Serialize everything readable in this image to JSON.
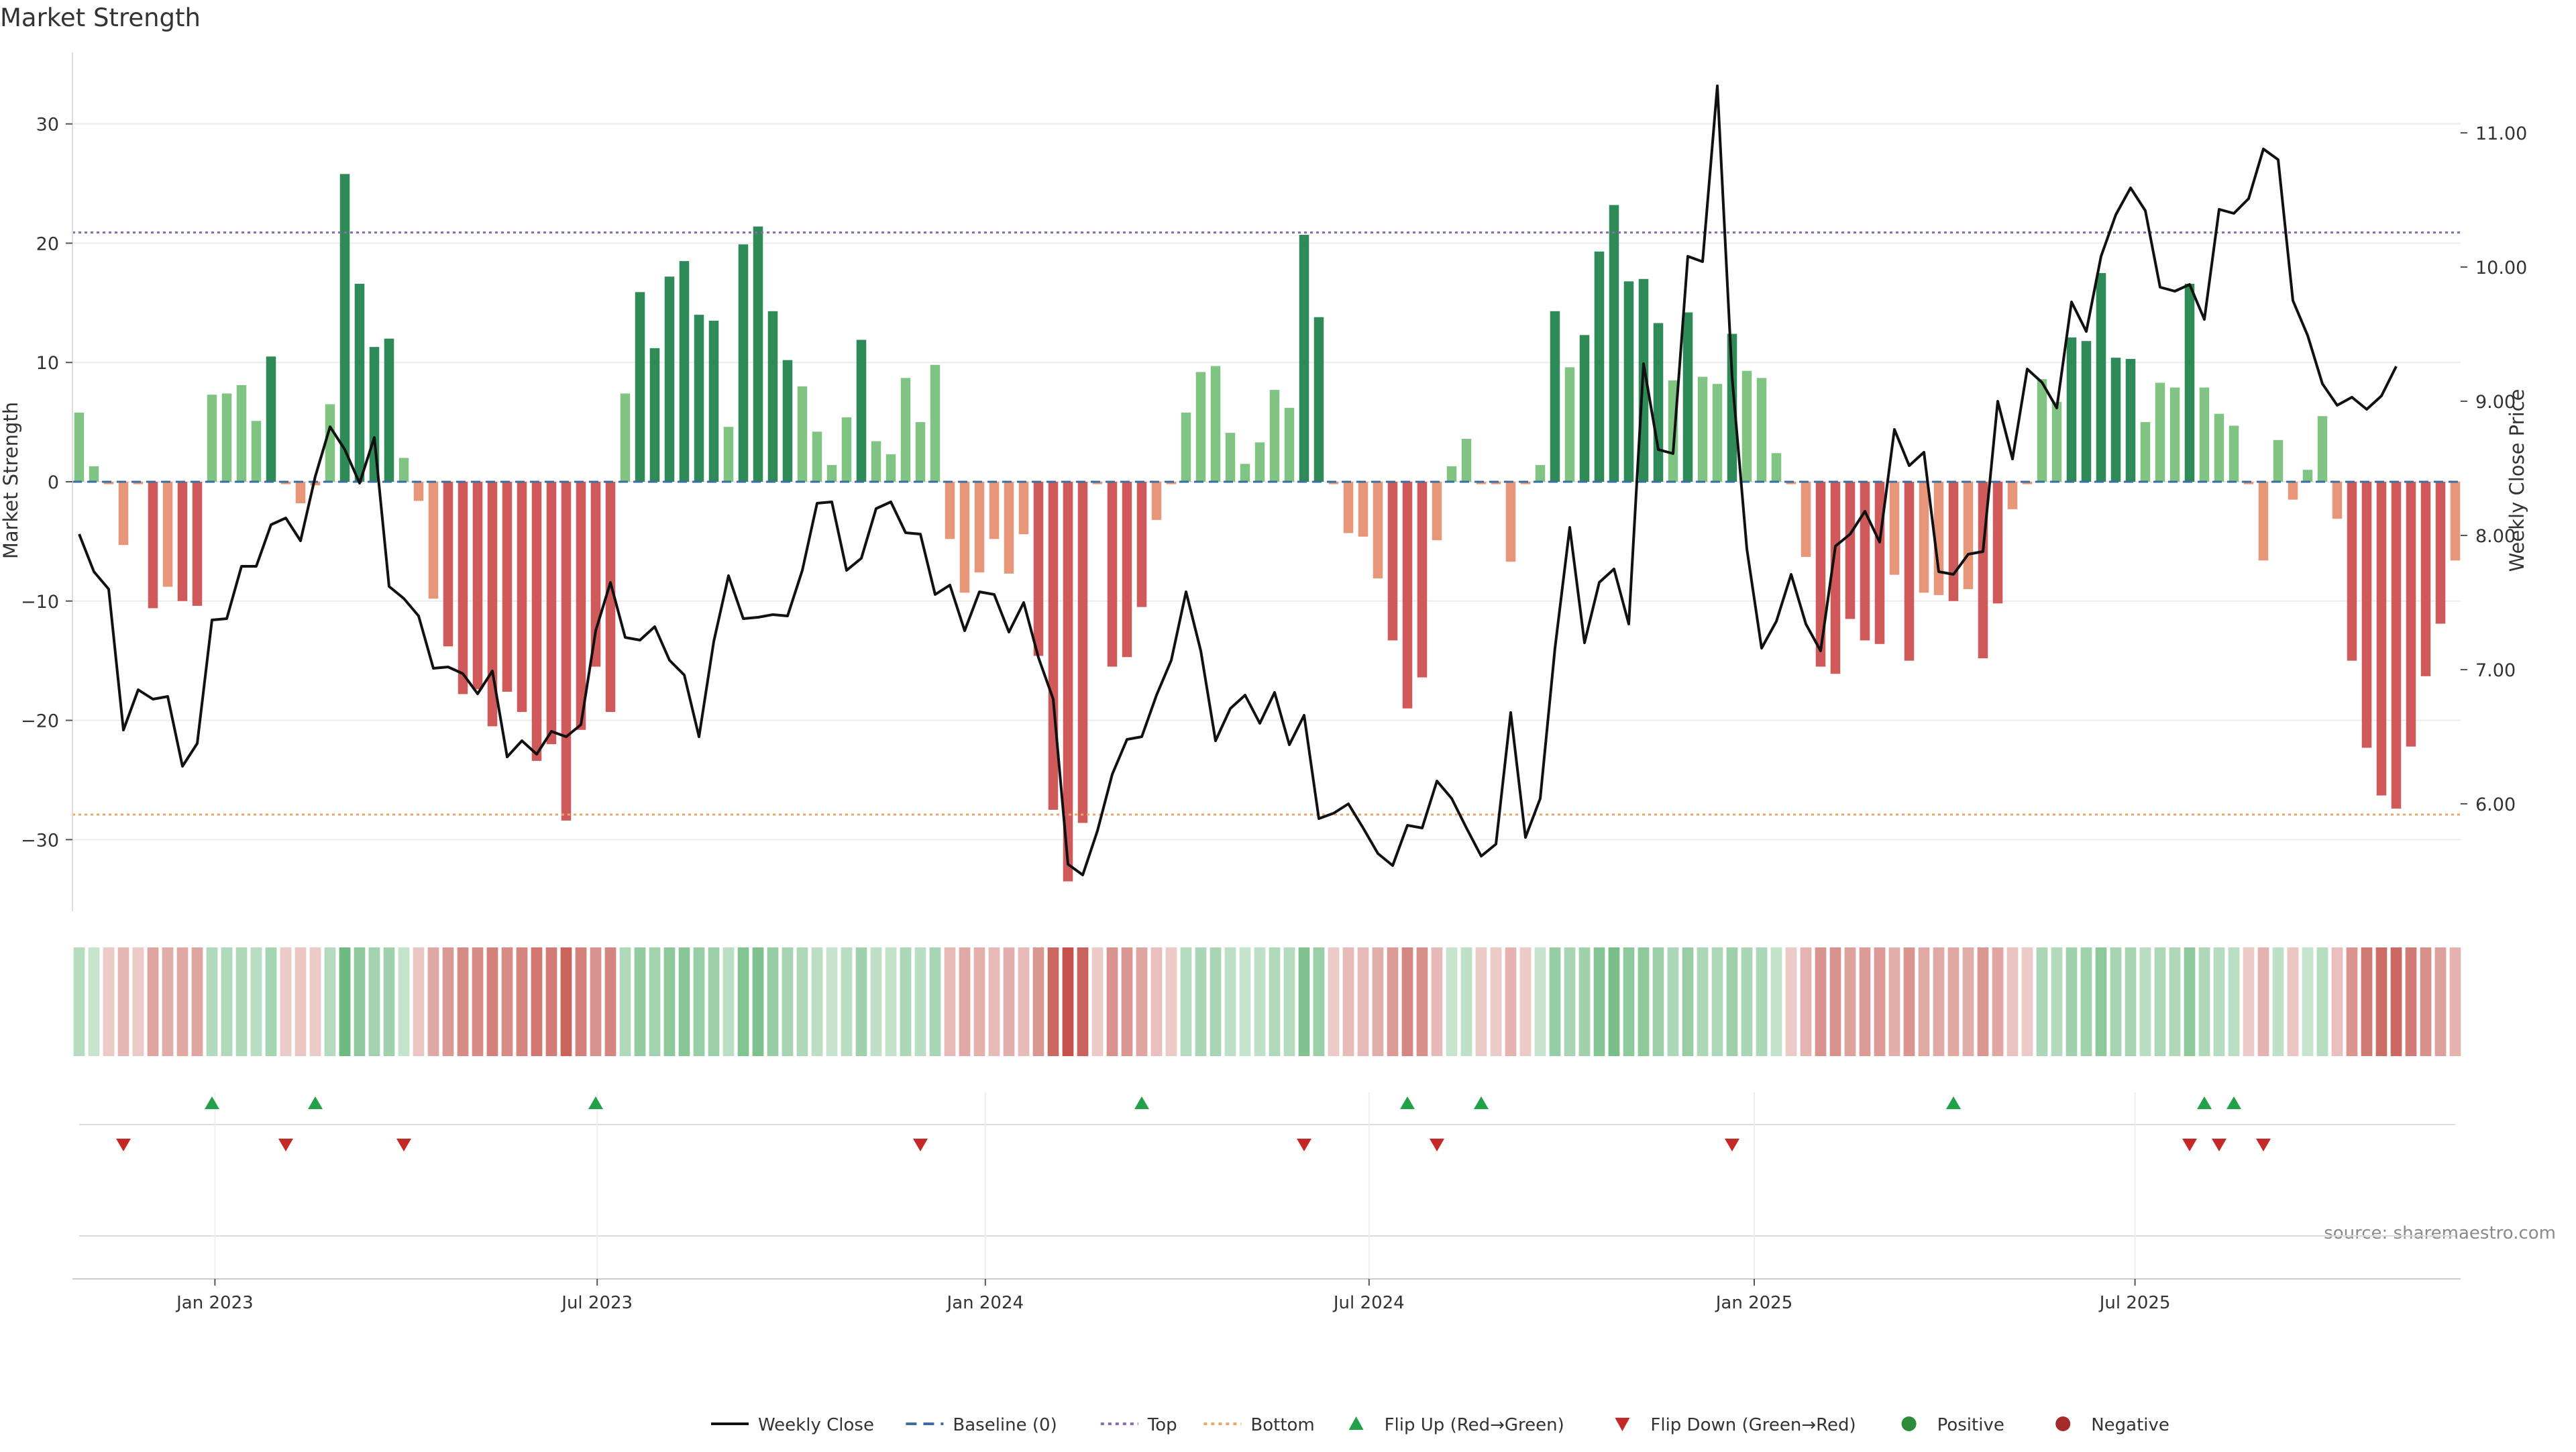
{
  "chart_data": {
    "type": "bar",
    "title": "Market Strength",
    "ylabel_left": "Market Strength",
    "ylabel_right": "Weekly Close Price",
    "source_note": "source: sharemaestro.com",
    "left_axis": {
      "ylim": [
        -36,
        36
      ],
      "ticks": [
        30,
        20,
        10,
        0,
        -10,
        -20,
        -30
      ],
      "tick_labels": [
        "30",
        "20",
        "10",
        "0",
        "−10",
        "−20",
        "−30"
      ]
    },
    "right_axis": {
      "ylim": [
        5.2,
        11.6
      ],
      "ticks": [
        11.0,
        10.0,
        9.0,
        8.0,
        7.0,
        6.0
      ],
      "tick_labels": [
        "11.00",
        "10.00",
        "9.00",
        "8.00",
        "7.00",
        "6.00"
      ]
    },
    "reference_lines": {
      "baseline": 0,
      "top": 20.9,
      "bottom": -27.9
    },
    "x_ticks": [
      {
        "label": "Jan 2023",
        "week": 9.2
      },
      {
        "label": "Jul 2023",
        "week": 35.1
      },
      {
        "label": "Jan 2024",
        "week": 61.4
      },
      {
        "label": "Jul 2024",
        "week": 87.4
      },
      {
        "label": "Jan 2025",
        "week": 113.5
      },
      {
        "label": "Jul 2025",
        "week": 139.3
      }
    ],
    "strength": [
      5.8,
      1.3,
      -0.2,
      -5.3,
      -0.2,
      -10.6,
      -8.8,
      -10.0,
      -10.4,
      7.3,
      7.4,
      8.1,
      5.1,
      10.5,
      -0.2,
      -1.8,
      -0.3,
      6.5,
      25.8,
      16.6,
      11.3,
      12.0,
      2.0,
      -1.6,
      -9.8,
      -13.8,
      -17.8,
      -17.4,
      -20.5,
      -17.6,
      -19.3,
      -23.4,
      -22.0,
      -28.4,
      -20.8,
      -15.5,
      -19.3,
      7.4,
      15.9,
      11.2,
      17.2,
      18.5,
      14.0,
      13.5,
      4.6,
      19.9,
      21.4,
      14.3,
      10.2,
      8.0,
      4.2,
      1.4,
      5.4,
      11.9,
      3.4,
      2.3,
      8.7,
      5.0,
      9.8,
      -4.8,
      -9.3,
      -7.6,
      -4.8,
      -7.7,
      -4.4,
      -14.6,
      -27.5,
      -33.5,
      -28.6,
      -0.2,
      -15.5,
      -14.7,
      -10.5,
      -3.2,
      -0.2,
      5.8,
      9.2,
      9.7,
      4.1,
      1.5,
      3.3,
      7.7,
      6.2,
      20.7,
      13.8,
      -0.2,
      -4.3,
      -4.6,
      -8.1,
      -13.3,
      -19.0,
      -16.4,
      -4.9,
      1.3,
      3.6,
      -0.2,
      -0.2,
      -6.7,
      -0.2,
      1.4,
      14.3,
      9.6,
      12.3,
      19.3,
      23.2,
      16.8,
      17.0,
      13.3,
      8.5,
      14.2,
      8.8,
      8.2,
      12.4,
      9.3,
      8.7,
      2.4,
      -0.2,
      -6.3,
      -15.5,
      -16.1,
      -11.5,
      -13.3,
      -13.6,
      -7.8,
      -15.0,
      -9.3,
      -9.5,
      -10.0,
      -9.0,
      -14.8,
      -10.2,
      -2.3,
      -0.2,
      8.6,
      6.7,
      12.1,
      11.8,
      17.5,
      10.4,
      10.3,
      5.0,
      8.3,
      7.9,
      16.6,
      7.9,
      5.7,
      4.7,
      -0.2,
      -6.6,
      3.5,
      -1.5,
      1.0,
      5.5,
      -3.1,
      -15.0,
      -22.3,
      -26.3,
      -27.4,
      -22.2,
      -16.3,
      -11.9,
      -6.6
    ],
    "weekly_close": [
      8.01,
      7.73,
      7.6,
      6.55,
      6.85,
      6.78,
      6.8,
      6.28,
      6.45,
      7.37,
      7.38,
      7.77,
      7.77,
      8.08,
      8.13,
      7.96,
      8.44,
      8.81,
      8.64,
      8.39,
      8.73,
      7.62,
      7.53,
      7.4,
      7.01,
      7.02,
      6.97,
      6.82,
      6.99,
      6.35,
      6.47,
      6.37,
      6.54,
      6.5,
      6.59,
      7.29,
      7.65,
      7.24,
      7.22,
      7.32,
      7.07,
      6.96,
      6.5,
      7.21,
      7.7,
      7.38,
      7.39,
      7.41,
      7.4,
      7.74,
      8.24,
      8.25,
      7.74,
      7.83,
      8.2,
      8.25,
      8.02,
      8.01,
      7.56,
      7.63,
      7.29,
      7.58,
      7.56,
      7.28,
      7.5,
      7.09,
      6.78,
      5.55,
      5.47,
      5.8,
      6.22,
      6.48,
      6.5,
      6.81,
      7.07,
      7.58,
      7.14,
      6.47,
      6.71,
      6.81,
      6.6,
      6.83,
      6.44,
      6.66,
      5.89,
      5.93,
      6.0,
      5.82,
      5.63,
      5.54,
      5.84,
      5.82,
      6.17,
      6.04,
      5.82,
      5.61,
      5.7,
      6.68,
      5.75,
      6.04,
      7.16,
      8.06,
      7.2,
      7.65,
      7.75,
      7.34,
      9.28,
      8.64,
      8.61,
      10.08,
      10.04,
      11.35,
      9.18,
      7.9,
      7.16,
      7.36,
      7.71,
      7.34,
      7.14,
      7.92,
      8.01,
      8.18,
      7.95,
      8.79,
      8.52,
      8.62,
      7.73,
      7.71,
      7.86,
      7.88,
      9.0,
      8.57,
      9.24,
      9.14,
      8.95,
      9.74,
      9.52,
      10.08,
      10.39,
      10.59,
      10.42,
      9.85,
      9.82,
      9.87,
      9.61,
      10.43,
      10.4,
      10.51,
      10.88,
      10.8,
      9.75,
      9.49,
      9.13,
      8.97,
      9.03,
      8.94,
      9.04,
      9.26
    ],
    "flip_up_weeks": [
      9,
      16,
      35,
      72,
      90,
      95,
      127,
      144,
      146
    ],
    "flip_down_weeks": [
      3,
      14,
      22,
      57,
      83,
      92,
      112,
      143,
      145,
      148
    ],
    "legend": [
      {
        "label": "Weekly Close",
        "kind": "line",
        "color": "#111111"
      },
      {
        "label": "Baseline (0)",
        "kind": "dash",
        "color": "#3a6e9f"
      },
      {
        "label": "Top",
        "kind": "dot",
        "color": "#8e6bb0"
      },
      {
        "label": "Bottom",
        "kind": "dot",
        "color": "#e8a86c"
      },
      {
        "label": "Flip Up (Red→Green)",
        "kind": "triangle-up",
        "color": "#22a04a"
      },
      {
        "label": "Flip Down (Green→Red)",
        "kind": "triangle-down",
        "color": "#c62828"
      },
      {
        "label": "Positive",
        "kind": "circle",
        "color": "#2e8b3a"
      },
      {
        "label": "Negative",
        "kind": "circle",
        "color": "#a52a2a"
      }
    ],
    "colors": {
      "strong_positive": "#2e8b57",
      "weak_positive": "#7fc483",
      "strong_negative": "#d05a5a",
      "weak_negative": "#e8967a",
      "heat_positive": "#52ac68",
      "heat_negative": "#c2524a",
      "flip_up": "#22a04a",
      "flip_down": "#c62828",
      "line": "#111111",
      "grid": "#ececec",
      "baseline": "#3a6e9f",
      "top_line": "#8e6bb0",
      "bottom_line": "#e8a86c"
    }
  }
}
